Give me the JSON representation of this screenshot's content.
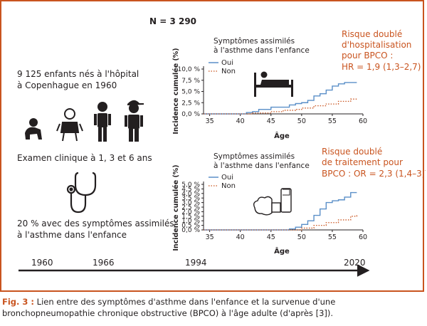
{
  "header": {
    "n_label": "N = 3 290"
  },
  "left": {
    "cohort": [
      "9 125 enfants nés à l'hôpital",
      "à Copenhague en 1960"
    ],
    "exam": "Examen clinique à 1, 3 et 6 ans",
    "symptoms": [
      "20 % avec des symptômes assimilés",
      "à l'asthme dans l'enfance"
    ]
  },
  "timeline": {
    "years": [
      "1960",
      "1966",
      "1994",
      "2020"
    ]
  },
  "risk_top": [
    "Risque doublé",
    "d'hospitalisation",
    "pour BPCO :",
    "HR = 1,9 (1,3–2,7)"
  ],
  "risk_bottom": [
    "Risque doublé",
    "de traitement pour",
    "BPCO : OR = 2,3 (1,4–3,7)"
  ],
  "colors": {
    "accent": "#c9541f",
    "oui": "#5a8fc8",
    "non": "#c9541f",
    "text": "#231f20"
  },
  "icons": [
    "baby-icon",
    "toddler-icon",
    "child-icon",
    "boy-icon",
    "stethoscope-icon",
    "hospital-bed-icon",
    "inhaler-icon"
  ],
  "caption": {
    "label": "Fig. 3 :",
    "text": " Lien entre des symptômes d'asthme dans l'enfance et la survenue d'une bronchopneumopathie chronique obstructive (BPCO) à l'âge adulte (d'après [3])."
  },
  "chart_data": [
    {
      "type": "line",
      "title": [
        "Symptômes assimilés",
        "à l'asthme dans l'enfance"
      ],
      "xlabel": "Âge",
      "ylabel": "Incidence cumulée (%)",
      "xlim": [
        34,
        60
      ],
      "ylim": [
        0,
        10
      ],
      "xticks": [
        35,
        40,
        45,
        50,
        55,
        60
      ],
      "yticks": [
        0,
        2.5,
        5,
        7.5,
        10
      ],
      "ytick_labels": [
        "0,0 %",
        "2,5 %",
        "5,0 %",
        "7,5 %",
        "10,0 %"
      ],
      "series": [
        {
          "name": "Oui",
          "style": "solid",
          "x": [
            34,
            40,
            41,
            42,
            43,
            45,
            46,
            47,
            48,
            49,
            50,
            51,
            52,
            53,
            54,
            55,
            56,
            57,
            58,
            59
          ],
          "y": [
            0,
            0,
            0.3,
            0.5,
            1.0,
            1.5,
            1.5,
            1.5,
            2.0,
            2.3,
            2.5,
            3.0,
            4.0,
            4.5,
            5.3,
            6.2,
            6.7,
            7.0,
            7.0,
            7.0
          ]
        },
        {
          "name": "Non",
          "style": "dotted",
          "x": [
            34,
            40,
            42,
            45,
            47,
            49,
            50,
            52,
            54,
            56,
            58,
            59
          ],
          "y": [
            0,
            0,
            0.2,
            0.5,
            0.8,
            1.0,
            1.3,
            1.8,
            2.2,
            2.8,
            3.3,
            3.6
          ]
        }
      ],
      "legend": "top-left"
    },
    {
      "type": "line",
      "title": [
        "Symptômes assimilés",
        "à l'asthme dans l'enfance"
      ],
      "xlabel": "Âge",
      "ylabel": "Incidence cumulée (%)",
      "xlim": [
        34,
        60
      ],
      "ylim": [
        0,
        5
      ],
      "xticks": [
        35,
        40,
        45,
        50,
        55,
        60
      ],
      "yticks": [
        0,
        0.5,
        1,
        1.5,
        2,
        2.5,
        3,
        3.5,
        4,
        4.5,
        5
      ],
      "ytick_labels": [
        "0,0 %",
        "0,5 %",
        "1,0 %",
        "1,5 %",
        "2,0 %",
        "2,5 %",
        "3,0 %",
        "3,5 %",
        "4,0 %",
        "4,5 %",
        "5,0 %"
      ],
      "series": [
        {
          "name": "Oui",
          "style": "solid",
          "x": [
            34,
            47,
            48,
            49,
            50,
            51,
            52,
            53,
            54,
            55,
            56,
            57,
            58,
            59
          ],
          "y": [
            0,
            0,
            0.1,
            0.3,
            0.6,
            1.0,
            1.6,
            2.3,
            3.0,
            3.2,
            3.3,
            3.6,
            4.1,
            4.1
          ]
        },
        {
          "name": "Non",
          "style": "dotted",
          "x": [
            34,
            48,
            50,
            52,
            54,
            56,
            58,
            59
          ],
          "y": [
            0,
            0,
            0.2,
            0.5,
            0.8,
            1.1,
            1.5,
            1.7
          ]
        }
      ],
      "legend": "top-left"
    }
  ]
}
